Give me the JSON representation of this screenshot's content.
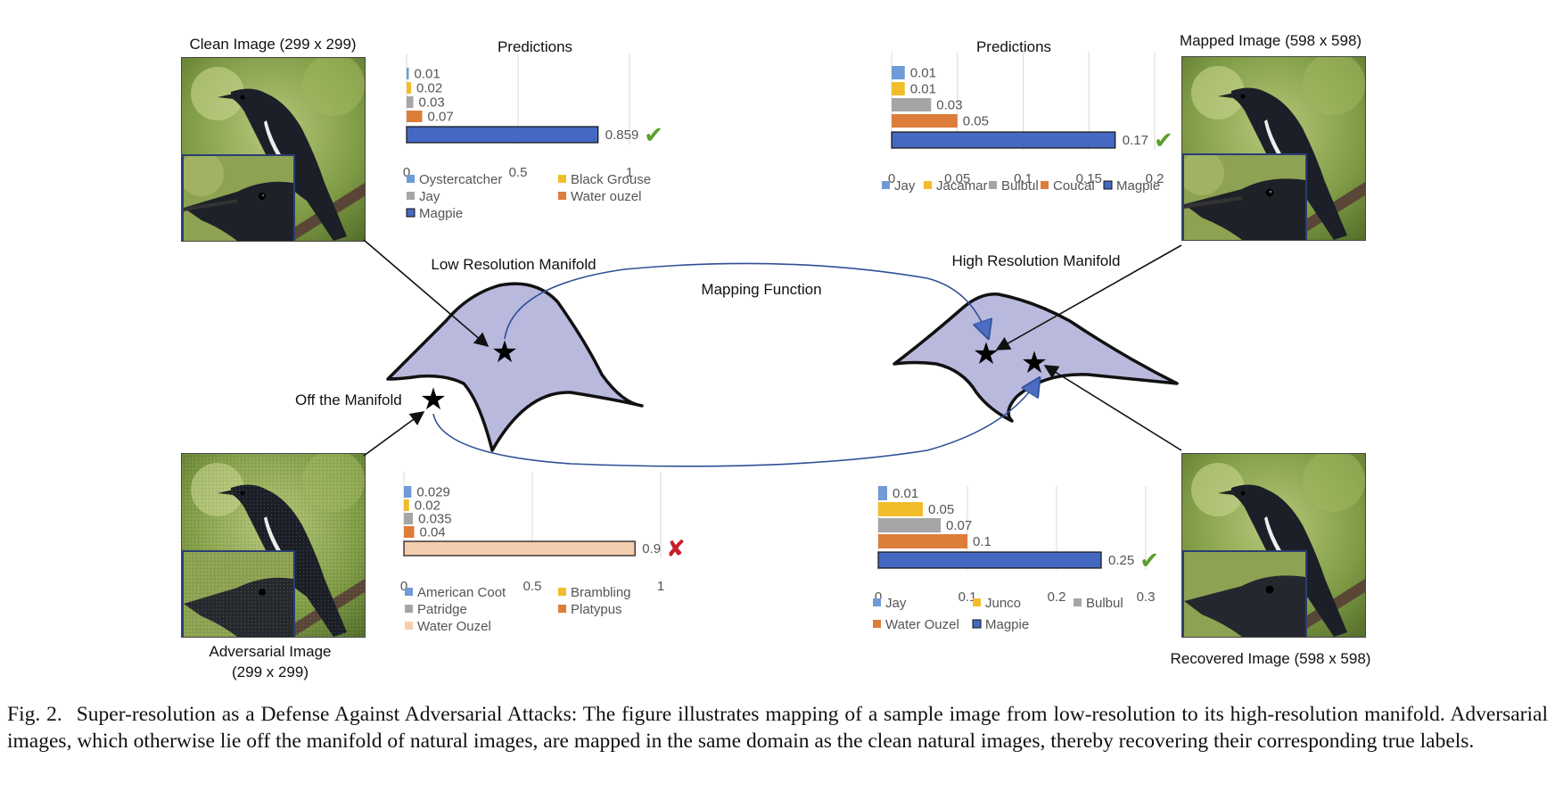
{
  "labels": {
    "clean_image": "Clean Image (299 x 299)",
    "mapped_image": "Mapped Image (598 x 598)",
    "adversarial_image_l1": "Adversarial Image",
    "adversarial_image_l2": "(299 x 299)",
    "recovered_image": "Recovered Image (598 x 598)",
    "low_res_manifold": "Low Resolution Manifold",
    "high_res_manifold": "High Resolution Manifold",
    "mapping_function": "Mapping Function",
    "off_manifold": "Off the Manifold"
  },
  "caption": {
    "figure_label": "Fig. 2.",
    "text": "Super-resolution as a Defense Against Adversarial Attacks: The figure illustrates mapping of a sample image from low-resolution to its high-resolution manifold. Adversarial images, which otherwise lie off the manifold of natural images, are mapped in the same domain as the clean natural images, thereby recovering their corresponding true labels."
  },
  "marks": {
    "correct": "✔",
    "wrong": "✘"
  },
  "colors": {
    "blue_light": "#6f9bd6",
    "yellow": "#f2bd2a",
    "gray": "#a5a5a5",
    "orange": "#dd7d3a",
    "blue_dark": "#4569c3",
    "peach": "#f3ceae",
    "manifold_fill": "#b9b9de",
    "check_green": "#5aa02c",
    "cross_red": "#c8202a",
    "arrow_blue": "#2f4f96"
  },
  "chart_data": [
    {
      "id": "clean",
      "type": "bar",
      "orientation": "horizontal",
      "title": "Predictions",
      "categories": [
        "Oystercatcher",
        "Black Grouse",
        "Jay",
        "Water ouzel",
        "Magpie"
      ],
      "values": [
        0.01,
        0.02,
        0.03,
        0.07,
        0.859
      ],
      "value_labels": [
        "0.01",
        "0.02",
        "0.03",
        "0.07",
        "0.859"
      ],
      "colors": [
        "#6f9bd6",
        "#f2bd2a",
        "#a5a5a5",
        "#dd7d3a",
        "#4569c3"
      ],
      "xlim": [
        0,
        1
      ],
      "xticks": [
        "0",
        "0.5",
        "1"
      ],
      "xtick_values": [
        0,
        0.5,
        1
      ],
      "grid": true,
      "result": "correct"
    },
    {
      "id": "mapped",
      "type": "bar",
      "orientation": "horizontal",
      "title": "Predictions",
      "categories": [
        "Jay",
        "Jacamar",
        "Bulbul",
        "Coucal",
        "Magpie"
      ],
      "values": [
        0.01,
        0.01,
        0.03,
        0.05,
        0.17
      ],
      "value_labels": [
        "0.01",
        "0.01",
        "0.03",
        "0.05",
        "0.17"
      ],
      "colors": [
        "#6f9bd6",
        "#f2bd2a",
        "#a5a5a5",
        "#dd7d3a",
        "#4569c3"
      ],
      "xlim": [
        0,
        0.2
      ],
      "xticks": [
        "0",
        "0.05",
        "0.1",
        "0.15",
        "0.2"
      ],
      "xtick_values": [
        0,
        0.05,
        0.1,
        0.15,
        0.2
      ],
      "grid": true,
      "result": "correct"
    },
    {
      "id": "adversarial",
      "type": "bar",
      "orientation": "horizontal",
      "title": "",
      "categories": [
        "American Coot",
        "Brambling",
        "Patridge",
        "Platypus",
        "Water Ouzel"
      ],
      "values": [
        0.029,
        0.02,
        0.035,
        0.04,
        0.9
      ],
      "value_labels": [
        "0.029",
        "0.02",
        "0.035",
        "0.04",
        "0.9"
      ],
      "colors": [
        "#6f9bd6",
        "#f2bd2a",
        "#a5a5a5",
        "#dd7d3a",
        "#f3ceae"
      ],
      "xlim": [
        0,
        1
      ],
      "xticks": [
        "0",
        "0.5",
        "1"
      ],
      "xtick_values": [
        0,
        0.5,
        1
      ],
      "grid": true,
      "result": "wrong"
    },
    {
      "id": "recovered",
      "type": "bar",
      "orientation": "horizontal",
      "title": "",
      "categories": [
        "Jay",
        "Junco",
        "Bulbul",
        "Water Ouzel",
        "Magpie"
      ],
      "values": [
        0.01,
        0.05,
        0.07,
        0.1,
        0.25
      ],
      "value_labels": [
        "0.01",
        "0.05",
        "0.07",
        "0.1",
        "0.25"
      ],
      "colors": [
        "#6f9bd6",
        "#f2bd2a",
        "#a5a5a5",
        "#dd7d3a",
        "#4569c3"
      ],
      "xlim": [
        0,
        0.3
      ],
      "xticks": [
        "0",
        "0.1",
        "0.2",
        "0.3"
      ],
      "xtick_values": [
        0,
        0.1,
        0.2,
        0.3
      ],
      "grid": true,
      "result": "correct"
    }
  ]
}
